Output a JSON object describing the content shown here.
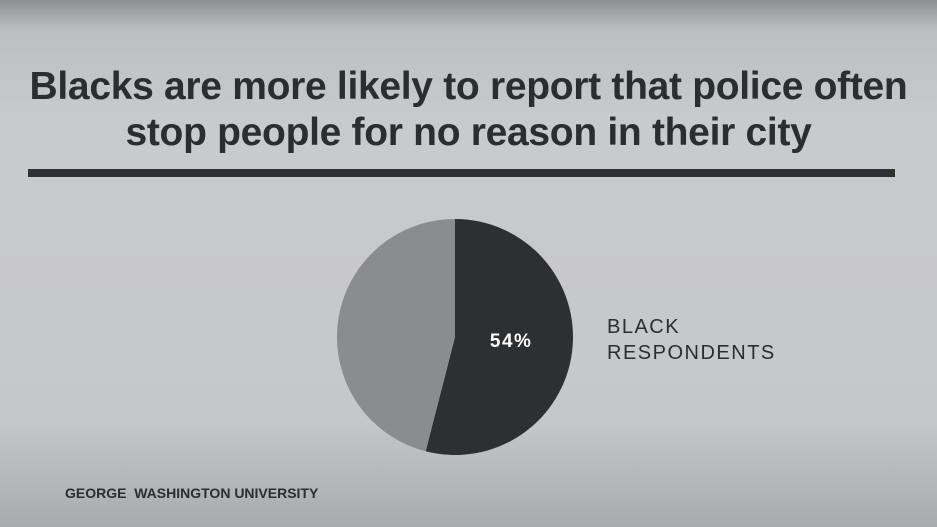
{
  "chart_data": {
    "type": "pie",
    "title": "Blacks are more likely to report  that police often stop people for no reason in their city",
    "categories": [
      "BLACK RESPONDENTS",
      null
    ],
    "values": [
      54,
      46
    ],
    "value_labels": [
      "54%",
      null
    ],
    "colors": [
      "#2e2f31",
      "#8b8c8e"
    ],
    "source": "GEORGE  WASHINGTON UNIVERSITY"
  }
}
